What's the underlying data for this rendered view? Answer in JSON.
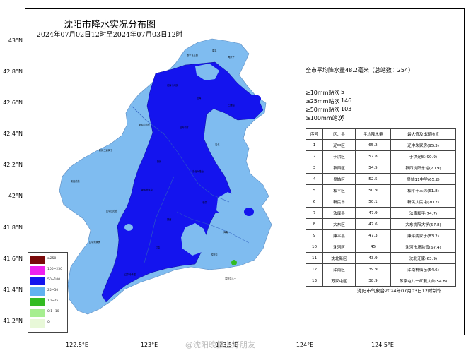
{
  "map": {
    "title": "沈阳市降水实况分布图",
    "subtitle": "2024年07月02日12时至2024年07月03日12时",
    "lat_labels": [
      "43°N",
      "42.8°N",
      "42.6°N",
      "42.4°N",
      "42.2°N",
      "42°N",
      "41.8°N",
      "41.6°N",
      "41.4°N",
      "41.2°N"
    ],
    "lon_labels": [
      "122.5°E",
      "123°E",
      "123.5°E",
      "124°E",
      "124.5°E"
    ],
    "colors": {
      "ocean_of_light": "#7fb8ec",
      "heavy": "#1414ee",
      "moderate": "#7fbcf0",
      "green_dot": "#33bb22",
      "legend_dark_red": "#7a0a0a",
      "legend_magenta": "#ee22ee"
    }
  },
  "summary": {
    "average_text": "全市平均降水量48.2毫米（总站数：254）",
    "counts": [
      {
        "label": "≥10mm站次",
        "value": "5"
      },
      {
        "label": "≥25mm站次",
        "value": "146"
      },
      {
        "label": "≥50mm站次",
        "value": "103"
      },
      {
        "label": "≥100mm站次",
        "value": "0"
      }
    ]
  },
  "rank_table": {
    "headers": [
      "序号",
      "区、县",
      "平均降水量",
      "最大值及出现地点"
    ],
    "rows": [
      [
        "1",
        "辽中区",
        "65.2",
        "辽中朱家房(95.3)"
      ],
      [
        "2",
        "于洪区",
        "57.8",
        "于洪光辉(90.9)"
      ],
      [
        "3",
        "铁西区",
        "54.5",
        "铁西沈阳东站(70.9)"
      ],
      [
        "4",
        "皇姑区",
        "52.5",
        "皇姑11中学(65.2)"
      ],
      [
        "5",
        "和平区",
        "50.9",
        "和平十三纬(61.8)"
      ],
      [
        "6",
        "新民市",
        "50.1",
        "新民大民屯(70.2)"
      ],
      [
        "7",
        "法库县",
        "47.9",
        "法库和平(74.7)"
      ],
      [
        "8",
        "大东区",
        "47.6",
        "大东沈阳大学(57.8)"
      ],
      [
        "9",
        "康平县",
        "47.3",
        "康平两家子(83.2)"
      ],
      [
        "10",
        "沈河区",
        "45",
        "沈河市场监管(67.4)"
      ],
      [
        "11",
        "沈北新区",
        "43.9",
        "沈北汪家(63.9)"
      ],
      [
        "12",
        "浑南区",
        "39.9",
        "浑南桃仙苗(54.6)"
      ],
      [
        "13",
        "苏家屯区",
        "38.9",
        "苏家屯八一红菱大台(54.8)"
      ]
    ]
  },
  "footer": "沈阳市气象台2024年07月03日12时制作",
  "legend": [
    {
      "color": "#7a0a0a",
      "label": "≥250"
    },
    {
      "color": "#ee22ee",
      "label": "100~250"
    },
    {
      "color": "#1414ee",
      "label": "50~100"
    },
    {
      "color": "#62b2f0",
      "label": "25~50"
    },
    {
      "color": "#33bb22",
      "label": "10~25"
    },
    {
      "color": "#a6ee90",
      "label": "0.1~10"
    },
    {
      "color": "#e8f8d8",
      "label": "0"
    }
  ],
  "watermark": "@沈阳晚报上好朋友"
}
